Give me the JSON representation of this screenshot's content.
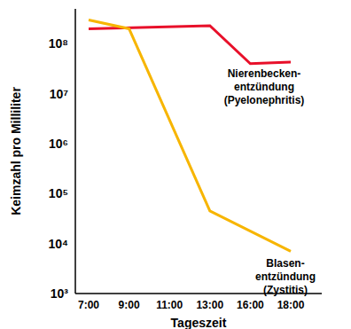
{
  "chart_data": {
    "type": "line",
    "x_label": "Tageszeit",
    "y_label": "Keimzahl pro Milliliter",
    "categories": [
      "7:00",
      "9:00",
      "11:00",
      "13:00",
      "16:00",
      "18:00"
    ],
    "series": [
      {
        "name": "Nierenbecken-\nentzündung\n(Pyelonephritis)",
        "color": "#e8102a",
        "values": [
          200000000,
          null,
          null,
          230000000,
          40000000,
          43000000
        ]
      },
      {
        "name": "Blasen-\nentzündung\n(Zystitis)",
        "color": "#f7b500",
        "values": [
          300000000,
          200000000,
          null,
          45000,
          null,
          7000
        ]
      }
    ],
    "log": "y",
    "ylim": [
      1000,
      500000000
    ],
    "yticks": [
      {
        "value": 1000,
        "label": "10³"
      },
      {
        "value": 10000,
        "label": "10⁴"
      },
      {
        "value": 100000,
        "label": "10⁵"
      },
      {
        "value": 1000000,
        "label": "10⁶"
      },
      {
        "value": 10000000,
        "label": "10⁷"
      },
      {
        "value": 100000000,
        "label": "10⁸"
      }
    ],
    "grid": false
  }
}
